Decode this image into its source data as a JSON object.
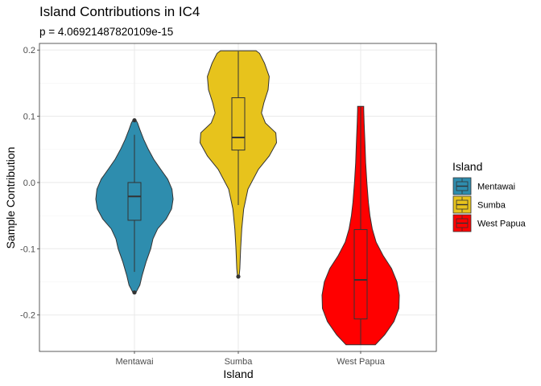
{
  "chart_data": {
    "type": "violin",
    "title": "Island Contributions in IC4",
    "subtitle": "p = 4.06921487820109e-15",
    "xlabel": "Island",
    "ylabel": "Sample Contribution",
    "categories": [
      "Mentawai",
      "Sumba",
      "West Papua"
    ],
    "ylim": [
      -0.255,
      0.21
    ],
    "yticks": [
      -0.2,
      -0.1,
      0.0,
      0.1,
      0.2
    ],
    "ytick_labels": [
      "-0.2",
      "-0.1",
      "0.0",
      "0.1",
      "0.2"
    ],
    "grid": true,
    "legend": {
      "title": "Island",
      "position": "right",
      "entries": [
        "Mentawai",
        "Sumba",
        "West Papua"
      ]
    },
    "series": [
      {
        "name": "Mentawai",
        "color": "#2E8DAE",
        "box": {
          "whisker_low": -0.135,
          "q1": -0.057,
          "median": -0.021,
          "q3": 0.0,
          "whisker_high": 0.072
        },
        "outliers": [
          0.094,
          -0.166
        ],
        "density": [
          [
            -0.166,
            0.04
          ],
          [
            -0.155,
            0.14
          ],
          [
            -0.14,
            0.2
          ],
          [
            -0.12,
            0.3
          ],
          [
            -0.1,
            0.42
          ],
          [
            -0.085,
            0.48
          ],
          [
            -0.07,
            0.6
          ],
          [
            -0.055,
            0.82
          ],
          [
            -0.04,
            0.96
          ],
          [
            -0.025,
            1.0
          ],
          [
            -0.01,
            0.97
          ],
          [
            0.005,
            0.86
          ],
          [
            0.02,
            0.68
          ],
          [
            0.035,
            0.5
          ],
          [
            0.05,
            0.36
          ],
          [
            0.065,
            0.24
          ],
          [
            0.08,
            0.14
          ],
          [
            0.09,
            0.08
          ],
          [
            0.094,
            0.04
          ]
        ]
      },
      {
        "name": "Sumba",
        "color": "#E7C31C",
        "box": {
          "whisker_low": -0.034,
          "q1": 0.049,
          "median": 0.068,
          "q3": 0.128,
          "whisker_high": 0.198
        },
        "outliers": [
          -0.142
        ],
        "density": [
          [
            -0.142,
            0.02
          ],
          [
            -0.13,
            0.04
          ],
          [
            -0.1,
            0.06
          ],
          [
            -0.07,
            0.09
          ],
          [
            -0.04,
            0.14
          ],
          [
            -0.01,
            0.25
          ],
          [
            0.02,
            0.52
          ],
          [
            0.04,
            0.8
          ],
          [
            0.06,
            0.99
          ],
          [
            0.075,
            0.97
          ],
          [
            0.09,
            0.7
          ],
          [
            0.105,
            0.6
          ],
          [
            0.12,
            0.66
          ],
          [
            0.14,
            0.77
          ],
          [
            0.16,
            0.8
          ],
          [
            0.18,
            0.68
          ],
          [
            0.195,
            0.55
          ],
          [
            0.199,
            0.46
          ]
        ]
      },
      {
        "name": "West Papua",
        "color": "#FF0000",
        "box": {
          "whisker_low": -0.245,
          "q1": -0.206,
          "median": -0.147,
          "q3": -0.071,
          "whisker_high": 0.115
        },
        "outliers": [],
        "density": [
          [
            -0.245,
            0.38
          ],
          [
            -0.23,
            0.62
          ],
          [
            -0.21,
            0.86
          ],
          [
            -0.19,
            0.99
          ],
          [
            -0.17,
            1.0
          ],
          [
            -0.15,
            0.94
          ],
          [
            -0.13,
            0.8
          ],
          [
            -0.11,
            0.58
          ],
          [
            -0.09,
            0.4
          ],
          [
            -0.07,
            0.3
          ],
          [
            -0.05,
            0.24
          ],
          [
            -0.03,
            0.2
          ],
          [
            0.0,
            0.16
          ],
          [
            0.03,
            0.13
          ],
          [
            0.06,
            0.11
          ],
          [
            0.09,
            0.09
          ],
          [
            0.11,
            0.08
          ],
          [
            0.115,
            0.08
          ]
        ]
      }
    ]
  }
}
